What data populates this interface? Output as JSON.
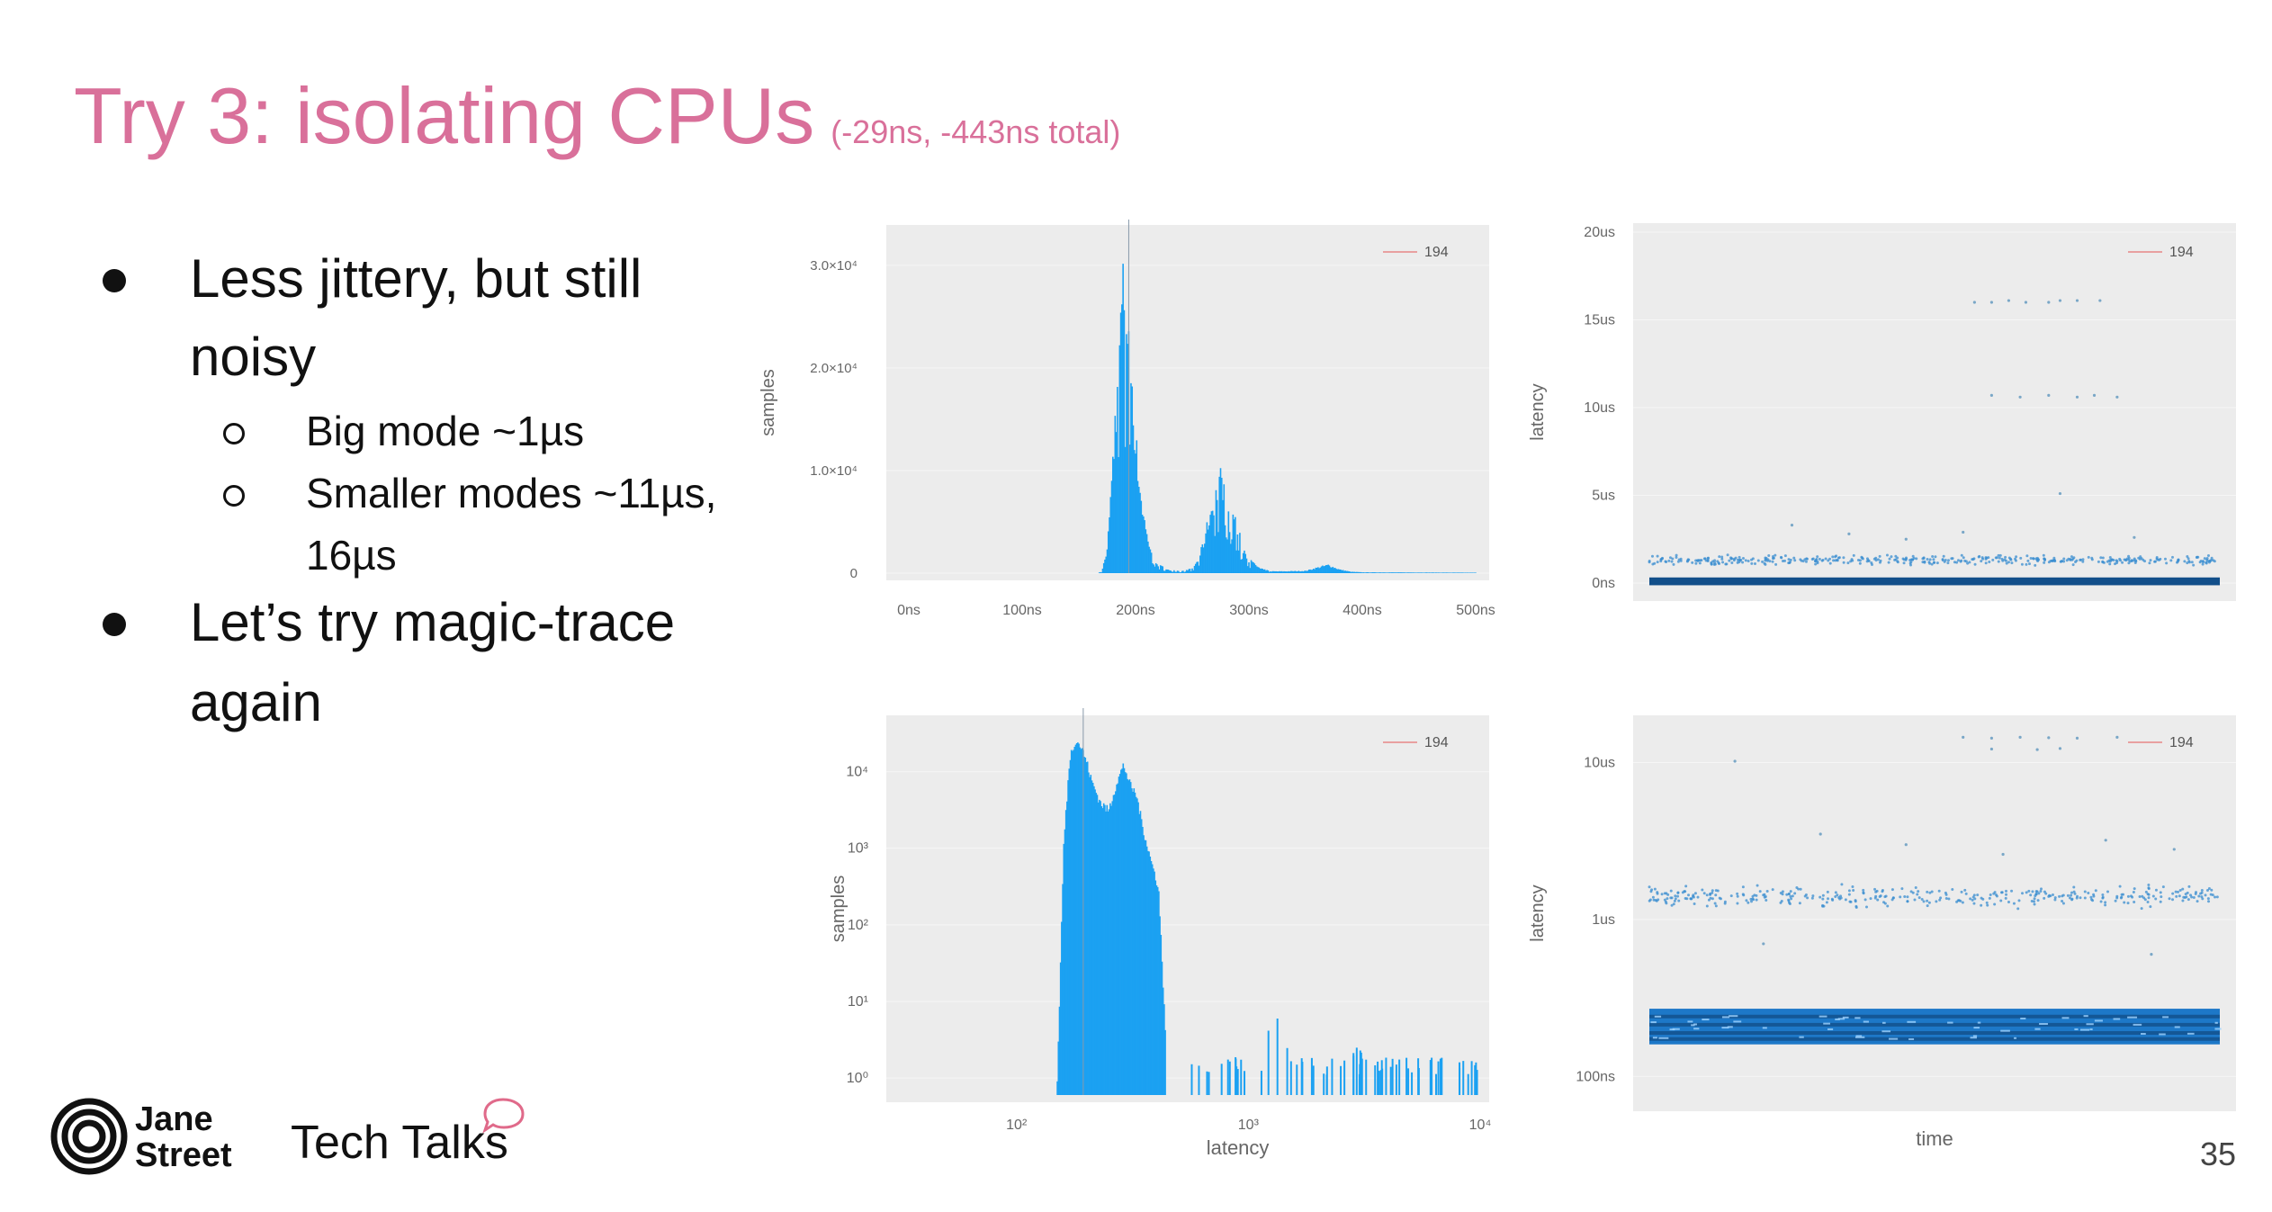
{
  "slide": {
    "title": "Try 3: isolating CPUs",
    "subtitle": "(-29ns, -443ns total)",
    "bullets": [
      {
        "line1": "Less jittery, but still",
        "line2": "noisy"
      },
      {
        "line1": "Let’s try magic-trace",
        "line2": "again"
      }
    ],
    "subbullets": [
      {
        "line1": "Big mode ~1µs",
        "line2": ""
      },
      {
        "line1": "Smaller modes ~11µs,",
        "line2": "16µs"
      }
    ],
    "page_number": "35",
    "footer": {
      "brand_line1": "Jane",
      "brand_line2": "Street",
      "tagline": "Tech Talks"
    }
  },
  "colors": {
    "title": "#d9709a",
    "series": "#1ba1f2",
    "dark_series": "#124f8a",
    "legend_line": "#e8a0a0",
    "panel_bg": "#ececec"
  },
  "chart_data": [
    {
      "type": "bar",
      "title": "",
      "xlabel": "",
      "ylabel": "samples",
      "legend": {
        "position": "top-right",
        "entries": [
          "194"
        ]
      },
      "xlim": [
        0,
        500
      ],
      "ylim": [
        0,
        32000
      ],
      "x_ticks": [
        "0ns",
        "100ns",
        "200ns",
        "300ns",
        "400ns",
        "500ns"
      ],
      "y_ticks": [
        "0",
        "1.0×10⁴",
        "2.0×10⁴",
        "3.0×10⁴"
      ],
      "y_tick_values": [
        0,
        10000,
        20000,
        30000
      ],
      "x": [
        170,
        175,
        180,
        185,
        188,
        190,
        192,
        195,
        198,
        200,
        205,
        210,
        215,
        220,
        230,
        240,
        250,
        255,
        260,
        265,
        270,
        275,
        280,
        285,
        290,
        295,
        300,
        310,
        320,
        330,
        350,
        360,
        370,
        380,
        390,
        400,
        450,
        500
      ],
      "values": [
        100,
        2500,
        12000,
        24000,
        30000,
        32000,
        29500,
        26000,
        19000,
        14500,
        8200,
        4200,
        2000,
        900,
        350,
        200,
        500,
        1400,
        3300,
        6200,
        8400,
        10500,
        9400,
        7300,
        4900,
        2700,
        1500,
        500,
        200,
        200,
        250,
        600,
        900,
        400,
        150,
        90,
        70,
        50
      ]
    },
    {
      "type": "scatter",
      "title": "",
      "xlabel": "",
      "ylabel": "latency",
      "legend": {
        "position": "top-right",
        "entries": [
          "194"
        ]
      },
      "ylim": [
        0,
        20
      ],
      "y_ticks": [
        "0ns",
        "5us",
        "10us",
        "15us",
        "20us"
      ],
      "y_tick_values": [
        0,
        5,
        10,
        15,
        20
      ],
      "y_unit": "us",
      "bands": [
        {
          "y": 0.2,
          "spread": 0.12,
          "density": "dense"
        },
        {
          "y": 1.3,
          "spread": 0.35,
          "density": "medium"
        }
      ],
      "outliers": [
        [
          0.57,
          16.0
        ],
        [
          0.6,
          16.0
        ],
        [
          0.63,
          16.1
        ],
        [
          0.66,
          16.0
        ],
        [
          0.7,
          16.0
        ],
        [
          0.72,
          16.1
        ],
        [
          0.75,
          16.1
        ],
        [
          0.79,
          16.1
        ],
        [
          0.6,
          10.7
        ],
        [
          0.65,
          10.6
        ],
        [
          0.7,
          10.7
        ],
        [
          0.75,
          10.6
        ],
        [
          0.78,
          10.7
        ],
        [
          0.82,
          10.6
        ],
        [
          0.25,
          3.3
        ],
        [
          0.35,
          2.8
        ],
        [
          0.55,
          2.9
        ],
        [
          0.72,
          5.1
        ],
        [
          0.85,
          2.6
        ],
        [
          0.45,
          2.5
        ]
      ]
    },
    {
      "type": "bar",
      "title": "",
      "xlabel": "latency",
      "ylabel": "samples",
      "x_scale": "log",
      "y_scale": "log",
      "legend": {
        "position": "top-right",
        "entries": [
          "194"
        ]
      },
      "xlim": [
        30,
        10000
      ],
      "ylim": [
        0.6,
        30000
      ],
      "x_ticks": [
        "10²",
        "10³",
        "10⁴"
      ],
      "x_tick_values": [
        100,
        1000,
        10000
      ],
      "y_ticks": [
        "10⁰",
        "10¹",
        "10²",
        "10³",
        "10⁴"
      ],
      "y_tick_values": [
        1,
        10,
        100,
        1000,
        10000
      ],
      "x": [
        150,
        160,
        170,
        180,
        190,
        200,
        210,
        230,
        250,
        270,
        290,
        310,
        330,
        350,
        380,
        410,
        450,
        480,
        520,
        560,
        600,
        650,
        700,
        780,
        850,
        950,
        1050,
        1150,
        1250,
        1350,
        1500,
        1650,
        1800,
        2000,
        2200,
        2400,
        2700,
        3000,
        3500,
        4000,
        5000,
        9500
      ],
      "values": [
        1,
        1300,
        18000,
        30000,
        24000,
        16000,
        9000,
        4500,
        3500,
        8000,
        14000,
        7500,
        5500,
        2200,
        800,
        350,
        1,
        1,
        1,
        1,
        1,
        1,
        1,
        1,
        1,
        1,
        6,
        4,
        5,
        3,
        3,
        2,
        3,
        2,
        2,
        2,
        1,
        2,
        1,
        1,
        1,
        1
      ]
    },
    {
      "type": "scatter",
      "title": "",
      "xlabel": "time",
      "ylabel": "latency",
      "y_scale": "log",
      "legend": {
        "position": "top-right",
        "entries": [
          "194"
        ]
      },
      "ylim": [
        0.06,
        20
      ],
      "y_ticks": [
        "100ns",
        "1us",
        "10us"
      ],
      "y_tick_values": [
        0.1,
        1,
        10
      ],
      "y_unit": "us",
      "bands": [
        {
          "y": 0.2,
          "spread_low": 0.16,
          "spread_high": 0.27,
          "density": "dense"
        },
        {
          "y": 1.4,
          "spread": 0.3,
          "density": "medium"
        }
      ],
      "outliers": [
        [
          0.15,
          10.2
        ],
        [
          0.55,
          14.5
        ],
        [
          0.6,
          14.3
        ],
        [
          0.65,
          14.5
        ],
        [
          0.7,
          14.4
        ],
        [
          0.75,
          14.3
        ],
        [
          0.82,
          14.5
        ],
        [
          0.6,
          12.2
        ],
        [
          0.68,
          12.1
        ],
        [
          0.72,
          12.3
        ],
        [
          0.3,
          3.5
        ],
        [
          0.45,
          3.0
        ],
        [
          0.62,
          2.6
        ],
        [
          0.8,
          3.2
        ],
        [
          0.92,
          2.8
        ],
        [
          0.2,
          0.7
        ],
        [
          0.88,
          0.6
        ]
      ]
    }
  ]
}
